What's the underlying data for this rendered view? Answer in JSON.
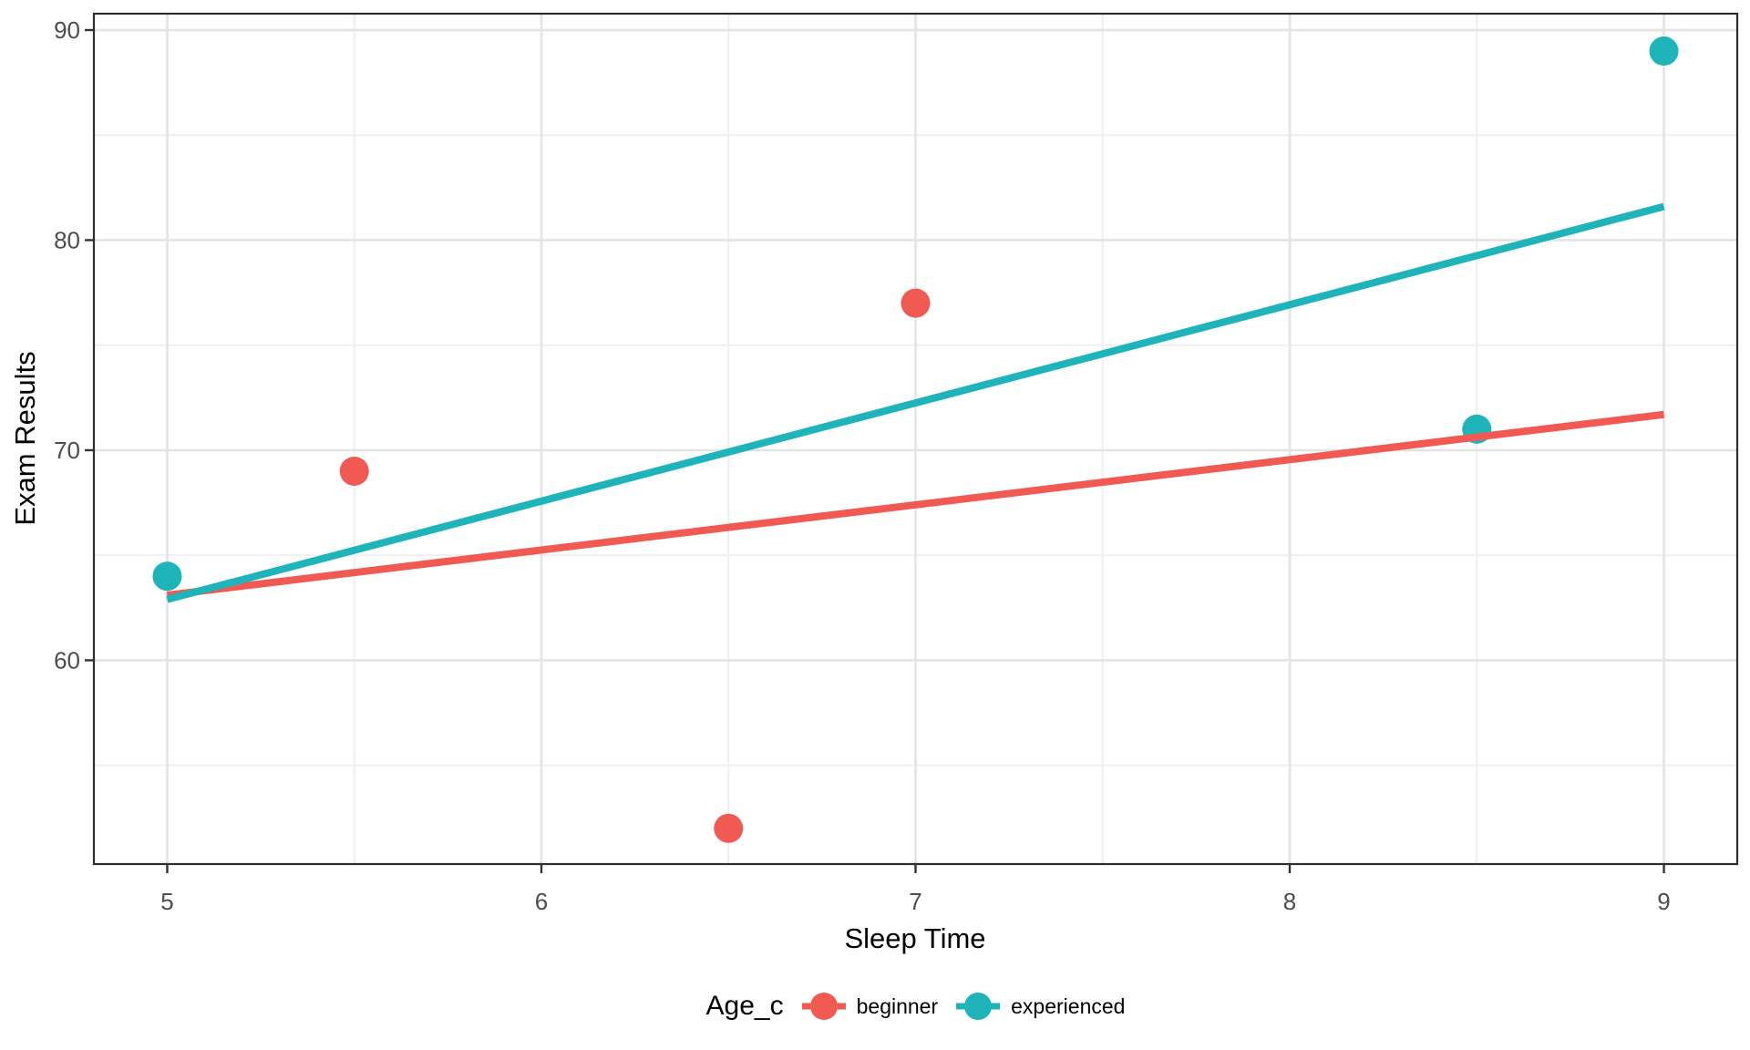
{
  "chart_data": {
    "type": "scatter",
    "title": "",
    "xlabel": "Sleep Time",
    "ylabel": "Exam Results",
    "legend_title": "Age_c",
    "legend_position": "bottom",
    "grid": "major+minor",
    "xlim": [
      4.804,
      9.196
    ],
    "ylim": [
      50.3,
      90.78
    ],
    "x_ticks": [
      5,
      6,
      7,
      8,
      9
    ],
    "x_minor_ticks": [
      5.5,
      6.5,
      7.5,
      8.5
    ],
    "y_ticks": [
      60,
      70,
      80,
      90
    ],
    "y_minor_ticks": [
      55,
      65,
      75,
      85
    ],
    "series": [
      {
        "name": "beginner",
        "color": "#F05A52",
        "points": [
          [
            5.5,
            69
          ],
          [
            6.5,
            52
          ],
          [
            7,
            77
          ]
        ],
        "trend": {
          "x": [
            5,
            9
          ],
          "y": [
            63.1,
            71.7
          ]
        }
      },
      {
        "name": "experienced",
        "color": "#1EB4B9",
        "points": [
          [
            5,
            64
          ],
          [
            8.5,
            71
          ],
          [
            9,
            89
          ]
        ],
        "trend": {
          "x": [
            5,
            9
          ],
          "y": [
            62.9,
            81.6
          ]
        }
      }
    ],
    "colors": {
      "grid_major": "#E4E4E4",
      "grid_minor": "#F0F0F0",
      "panel_border": "#2E2E2E",
      "tick_mark": "#333333",
      "tick_label": "#4D4D4D",
      "point_radius": 16,
      "trend_width": 8
    }
  }
}
